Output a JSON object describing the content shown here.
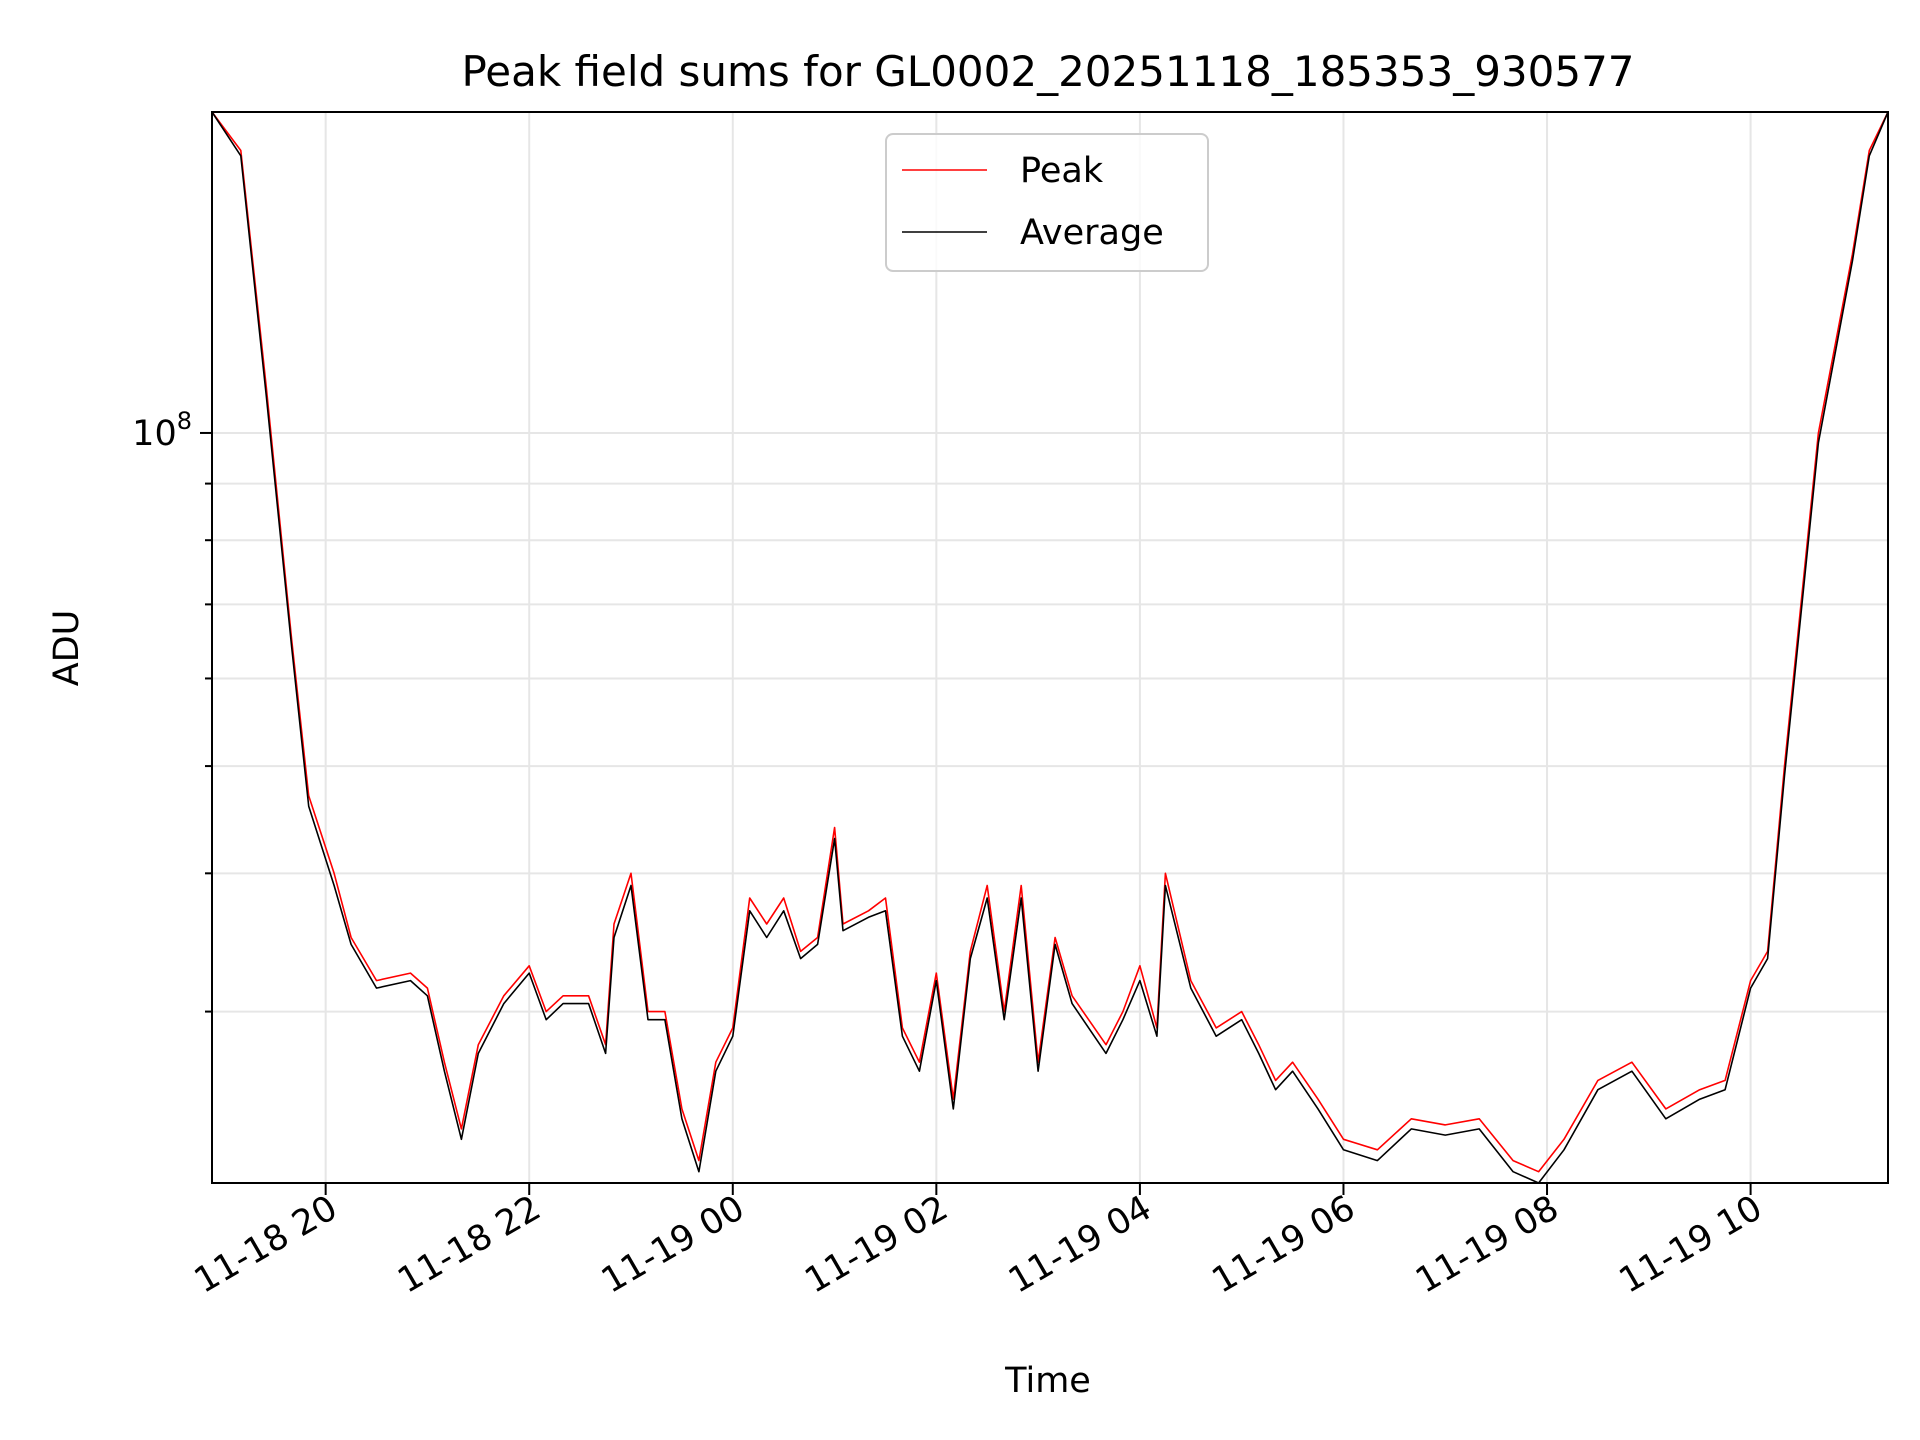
{
  "chart_data": {
    "type": "line",
    "title": "Peak field sums for GL0002_20251118_185353_930577",
    "xlabel": "Time",
    "ylabel": "ADU",
    "yscale": "log",
    "grid": true,
    "legend_placement": "upper center",
    "x_tick_labels": [
      "11-18 20",
      "11-18 22",
      "11-19 00",
      "11-19 02",
      "11-19 04",
      "11-19 06",
      "11-19 08",
      "11-19 10"
    ],
    "x_tick_values": [
      "2025-11-18T20:00",
      "2025-11-18T22:00",
      "2025-11-19T00:00",
      "2025-11-19T02:00",
      "2025-11-19T04:00",
      "2025-11-19T06:00",
      "2025-11-19T08:00",
      "2025-11-19T10:00"
    ],
    "xlim": [
      "2025-11-18T18:53",
      "2025-11-19T11:21"
    ],
    "y_tick_labels": [
      {
        "base": "10",
        "exp": "8",
        "value": 100000000
      }
    ],
    "ylim": [
      21000000,
      195000000
    ],
    "colors": {
      "Peak": "#ff0000",
      "Average": "#000000",
      "grid": "#e6e6e6"
    },
    "x": [
      "2025-11-18T18:53",
      "2025-11-18T19:10",
      "2025-11-18T19:25",
      "2025-11-18T19:40",
      "2025-11-18T19:50",
      "2025-11-18T20:05",
      "2025-11-18T20:15",
      "2025-11-18T20:30",
      "2025-11-18T20:50",
      "2025-11-18T21:00",
      "2025-11-18T21:10",
      "2025-11-18T21:20",
      "2025-11-18T21:30",
      "2025-11-18T21:45",
      "2025-11-18T22:00",
      "2025-11-18T22:10",
      "2025-11-18T22:20",
      "2025-11-18T22:35",
      "2025-11-18T22:45",
      "2025-11-18T22:50",
      "2025-11-18T23:00",
      "2025-11-18T23:10",
      "2025-11-18T23:20",
      "2025-11-18T23:30",
      "2025-11-18T23:40",
      "2025-11-18T23:50",
      "2025-11-19T00:00",
      "2025-11-19T00:10",
      "2025-11-19T00:20",
      "2025-11-19T00:30",
      "2025-11-19T00:40",
      "2025-11-19T00:50",
      "2025-11-19T01:00",
      "2025-11-19T01:05",
      "2025-11-19T01:20",
      "2025-11-19T01:30",
      "2025-11-19T01:40",
      "2025-11-19T01:50",
      "2025-11-19T02:00",
      "2025-11-19T02:10",
      "2025-11-19T02:20",
      "2025-11-19T02:30",
      "2025-11-19T02:40",
      "2025-11-19T02:50",
      "2025-11-19T03:00",
      "2025-11-19T03:10",
      "2025-11-19T03:20",
      "2025-11-19T03:40",
      "2025-11-19T03:50",
      "2025-11-19T04:00",
      "2025-11-19T04:10",
      "2025-11-19T04:15",
      "2025-11-19T04:30",
      "2025-11-19T04:45",
      "2025-11-19T05:00",
      "2025-11-19T05:10",
      "2025-11-19T05:20",
      "2025-11-19T05:30",
      "2025-11-19T05:45",
      "2025-11-19T06:00",
      "2025-11-19T06:20",
      "2025-11-19T06:40",
      "2025-11-19T07:00",
      "2025-11-19T07:20",
      "2025-11-19T07:40",
      "2025-11-19T07:55",
      "2025-11-19T08:10",
      "2025-11-19T08:30",
      "2025-11-19T08:50",
      "2025-11-19T09:10",
      "2025-11-19T09:30",
      "2025-11-19T09:45",
      "2025-11-19T10:00",
      "2025-11-19T10:10",
      "2025-11-19T10:20",
      "2025-11-19T10:40",
      "2025-11-19T11:00",
      "2025-11-19T11:10",
      "2025-11-19T11:21"
    ],
    "series": [
      {
        "name": "Peak",
        "color": "#ff0000",
        "values": [
          195000000,
          180000000,
          110000000,
          65000000,
          47000000,
          40000000,
          35000000,
          32000000,
          32500000,
          31500000,
          27000000,
          23500000,
          28000000,
          31000000,
          33000000,
          30000000,
          31000000,
          31000000,
          28000000,
          36000000,
          40000000,
          30000000,
          30000000,
          24500000,
          22000000,
          27000000,
          29000000,
          38000000,
          36000000,
          38000000,
          34000000,
          35000000,
          44000000,
          36000000,
          37000000,
          38000000,
          29000000,
          27000000,
          32500000,
          25000000,
          34000000,
          39000000,
          30000000,
          39000000,
          27000000,
          35000000,
          31000000,
          28000000,
          30000000,
          33000000,
          29000000,
          40000000,
          32000000,
          29000000,
          30000000,
          28000000,
          26000000,
          27000000,
          25000000,
          23000000,
          22500000,
          24000000,
          23700000,
          24000000,
          22000000,
          21500000,
          23000000,
          26000000,
          27000000,
          24500000,
          25500000,
          26000000,
          32000000,
          34000000,
          50000000,
          100000000,
          145000000,
          180000000,
          195000000
        ]
      },
      {
        "name": "Average",
        "color": "#000000",
        "values": [
          195000000,
          178000000,
          108000000,
          64000000,
          46000000,
          39000000,
          34500000,
          31500000,
          32000000,
          31000000,
          26500000,
          23000000,
          27500000,
          30500000,
          32500000,
          29500000,
          30500000,
          30500000,
          27500000,
          35000000,
          39000000,
          29500000,
          29500000,
          24000000,
          21500000,
          26500000,
          28500000,
          37000000,
          35000000,
          37000000,
          33500000,
          34500000,
          43000000,
          35500000,
          36500000,
          37000000,
          28500000,
          26500000,
          32000000,
          24500000,
          33500000,
          38000000,
          29500000,
          38000000,
          26500000,
          34500000,
          30500000,
          27500000,
          29500000,
          32000000,
          28500000,
          39000000,
          31500000,
          28500000,
          29500000,
          27500000,
          25500000,
          26500000,
          24500000,
          22500000,
          22000000,
          23500000,
          23200000,
          23500000,
          21500000,
          21000000,
          22500000,
          25500000,
          26500000,
          24000000,
          25000000,
          25500000,
          31500000,
          33500000,
          49000000,
          98000000,
          143000000,
          178000000,
          195000000
        ]
      }
    ]
  }
}
